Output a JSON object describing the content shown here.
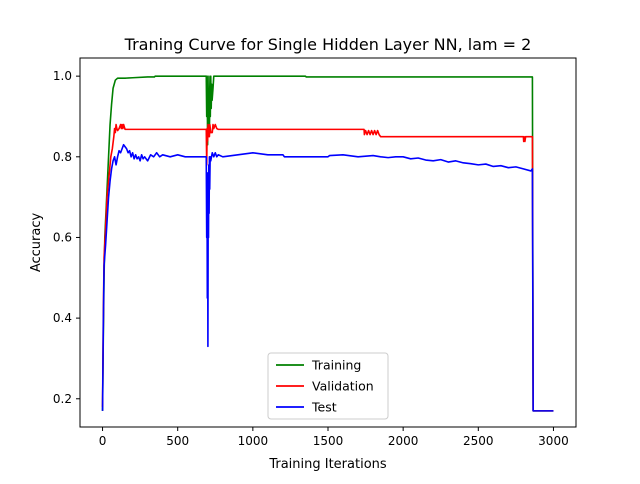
{
  "chart_data": {
    "type": "line",
    "title": "Traning Curve for Single Hidden Layer NN, lam = 2",
    "xlabel": "Training Iterations",
    "ylabel": "Accuracy",
    "xlim": [
      -150,
      3150
    ],
    "ylim": [
      0.13,
      1.045
    ],
    "xticks": [
      0,
      500,
      1000,
      1500,
      2000,
      2500,
      3000
    ],
    "yticks": [
      0.2,
      0.4,
      0.6,
      0.8,
      1.0
    ],
    "xtick_labels": [
      "0",
      "500",
      "1000",
      "1500",
      "2000",
      "2500",
      "3000"
    ],
    "ytick_labels": [
      "0.2",
      "0.4",
      "0.6",
      "0.8",
      "1.0"
    ],
    "grid": false,
    "legend_position": "lower center",
    "series": [
      {
        "name": "Training",
        "color": "#008000",
        "points": [
          [
            0,
            0.17
          ],
          [
            5,
            0.35
          ],
          [
            10,
            0.5
          ],
          [
            15,
            0.6
          ],
          [
            25,
            0.68
          ],
          [
            40,
            0.8
          ],
          [
            50,
            0.88
          ],
          [
            60,
            0.93
          ],
          [
            70,
            0.97
          ],
          [
            85,
            0.99
          ],
          [
            100,
            0.995
          ],
          [
            150,
            0.995
          ],
          [
            200,
            0.996
          ],
          [
            300,
            0.998
          ],
          [
            345,
            0.998
          ],
          [
            350,
            1.0
          ],
          [
            690,
            1.0
          ],
          [
            693,
            0.9
          ],
          [
            696,
            1.0
          ],
          [
            699,
            0.83
          ],
          [
            702,
            0.95
          ],
          [
            705,
            0.88
          ],
          [
            708,
            1.0
          ],
          [
            711,
            0.86
          ],
          [
            714,
            0.96
          ],
          [
            717,
            0.9
          ],
          [
            720,
            1.0
          ],
          [
            723,
            0.92
          ],
          [
            726,
            0.98
          ],
          [
            729,
            0.94
          ],
          [
            735,
            0.97
          ],
          [
            740,
            1.0
          ],
          [
            1350,
            1.0
          ],
          [
            1355,
            0.998
          ],
          [
            2860,
            0.998
          ],
          [
            2865,
            0.17
          ],
          [
            3000,
            0.17
          ]
        ]
      },
      {
        "name": "Validation",
        "color": "#ff0000",
        "points": [
          [
            0,
            0.18
          ],
          [
            5,
            0.4
          ],
          [
            10,
            0.55
          ],
          [
            20,
            0.62
          ],
          [
            30,
            0.7
          ],
          [
            45,
            0.76
          ],
          [
            55,
            0.8
          ],
          [
            65,
            0.82
          ],
          [
            75,
            0.85
          ],
          [
            80,
            0.87
          ],
          [
            85,
            0.86
          ],
          [
            90,
            0.88
          ],
          [
            95,
            0.87
          ],
          [
            100,
            0.865
          ],
          [
            110,
            0.87
          ],
          [
            120,
            0.88
          ],
          [
            125,
            0.87
          ],
          [
            130,
            0.88
          ],
          [
            135,
            0.87
          ],
          [
            140,
            0.88
          ],
          [
            150,
            0.868
          ],
          [
            690,
            0.868
          ],
          [
            693,
            0.78
          ],
          [
            696,
            0.87
          ],
          [
            699,
            0.84
          ],
          [
            702,
            0.88
          ],
          [
            705,
            0.85
          ],
          [
            708,
            0.87
          ],
          [
            711,
            0.85
          ],
          [
            714,
            0.88
          ],
          [
            720,
            0.86
          ],
          [
            730,
            0.86
          ],
          [
            735,
            0.88
          ],
          [
            740,
            0.87
          ],
          [
            750,
            0.88
          ],
          [
            760,
            0.87
          ],
          [
            770,
            0.868
          ],
          [
            1740,
            0.868
          ],
          [
            1742,
            0.855
          ],
          [
            1750,
            0.865
          ],
          [
            1760,
            0.855
          ],
          [
            1770,
            0.865
          ],
          [
            1780,
            0.855
          ],
          [
            1790,
            0.865
          ],
          [
            1800,
            0.855
          ],
          [
            1810,
            0.865
          ],
          [
            1820,
            0.855
          ],
          [
            1830,
            0.865
          ],
          [
            1840,
            0.855
          ],
          [
            1850,
            0.85
          ],
          [
            2800,
            0.85
          ],
          [
            2802,
            0.838
          ],
          [
            2805,
            0.85
          ],
          [
            2810,
            0.838
          ],
          [
            2815,
            0.85
          ],
          [
            2860,
            0.85
          ],
          [
            2865,
            0.17
          ],
          [
            3000,
            0.17
          ]
        ]
      },
      {
        "name": "Test",
        "color": "#0000ff",
        "points": [
          [
            0,
            0.17
          ],
          [
            5,
            0.38
          ],
          [
            10,
            0.53
          ],
          [
            20,
            0.58
          ],
          [
            30,
            0.64
          ],
          [
            40,
            0.7
          ],
          [
            50,
            0.74
          ],
          [
            60,
            0.77
          ],
          [
            70,
            0.79
          ],
          [
            80,
            0.8
          ],
          [
            90,
            0.78
          ],
          [
            100,
            0.8
          ],
          [
            110,
            0.815
          ],
          [
            120,
            0.81
          ],
          [
            130,
            0.82
          ],
          [
            140,
            0.83
          ],
          [
            150,
            0.825
          ],
          [
            160,
            0.82
          ],
          [
            170,
            0.81
          ],
          [
            180,
            0.815
          ],
          [
            190,
            0.8
          ],
          [
            200,
            0.81
          ],
          [
            210,
            0.795
          ],
          [
            220,
            0.805
          ],
          [
            230,
            0.795
          ],
          [
            240,
            0.8
          ],
          [
            250,
            0.79
          ],
          [
            260,
            0.805
          ],
          [
            270,
            0.795
          ],
          [
            280,
            0.8
          ],
          [
            300,
            0.79
          ],
          [
            320,
            0.805
          ],
          [
            340,
            0.8
          ],
          [
            360,
            0.81
          ],
          [
            380,
            0.8
          ],
          [
            400,
            0.805
          ],
          [
            450,
            0.8
          ],
          [
            500,
            0.805
          ],
          [
            550,
            0.8
          ],
          [
            600,
            0.8
          ],
          [
            650,
            0.8
          ],
          [
            690,
            0.8
          ],
          [
            693,
            0.6
          ],
          [
            695,
            0.75
          ],
          [
            697,
            0.45
          ],
          [
            699,
            0.76
          ],
          [
            701,
            0.33
          ],
          [
            703,
            0.72
          ],
          [
            705,
            0.6
          ],
          [
            707,
            0.78
          ],
          [
            709,
            0.66
          ],
          [
            711,
            0.8
          ],
          [
            713,
            0.72
          ],
          [
            716,
            0.8
          ],
          [
            720,
            0.79
          ],
          [
            730,
            0.81
          ],
          [
            740,
            0.8
          ],
          [
            750,
            0.81
          ],
          [
            760,
            0.8
          ],
          [
            770,
            0.805
          ],
          [
            800,
            0.8
          ],
          [
            900,
            0.805
          ],
          [
            1000,
            0.81
          ],
          [
            1100,
            0.805
          ],
          [
            1200,
            0.805
          ],
          [
            1210,
            0.8
          ],
          [
            1500,
            0.8
          ],
          [
            1510,
            0.803
          ],
          [
            1600,
            0.805
          ],
          [
            1700,
            0.8
          ],
          [
            1800,
            0.803
          ],
          [
            1850,
            0.8
          ],
          [
            1900,
            0.798
          ],
          [
            1950,
            0.8
          ],
          [
            2000,
            0.8
          ],
          [
            2050,
            0.795
          ],
          [
            2100,
            0.797
          ],
          [
            2150,
            0.792
          ],
          [
            2200,
            0.79
          ],
          [
            2250,
            0.793
          ],
          [
            2300,
            0.787
          ],
          [
            2350,
            0.79
          ],
          [
            2400,
            0.785
          ],
          [
            2450,
            0.783
          ],
          [
            2500,
            0.78
          ],
          [
            2550,
            0.782
          ],
          [
            2600,
            0.776
          ],
          [
            2650,
            0.778
          ],
          [
            2700,
            0.773
          ],
          [
            2750,
            0.775
          ],
          [
            2800,
            0.77
          ],
          [
            2850,
            0.765
          ],
          [
            2860,
            0.77
          ],
          [
            2865,
            0.17
          ],
          [
            3000,
            0.17
          ]
        ]
      }
    ]
  }
}
